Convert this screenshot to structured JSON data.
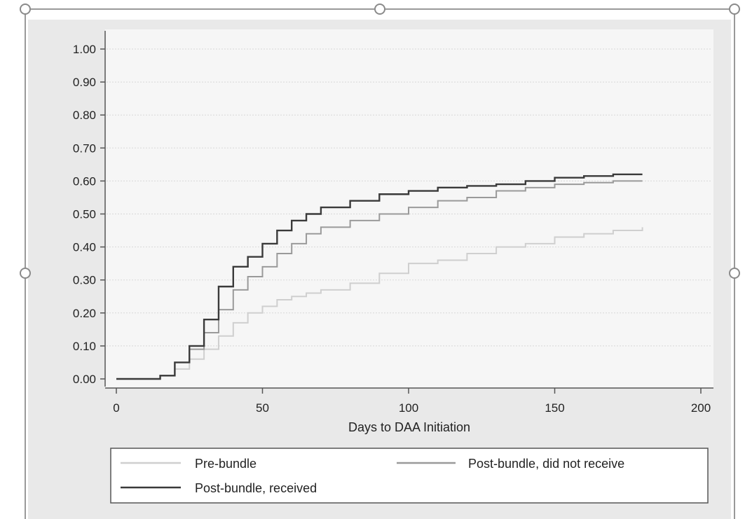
{
  "chart_data": {
    "type": "line",
    "title": "",
    "xlabel": "Days to DAA Initiation",
    "ylabel": "",
    "xlim": [
      0,
      200
    ],
    "ylim": [
      0.0,
      1.0
    ],
    "x_ticks": [
      0,
      50,
      100,
      150,
      200
    ],
    "x_tick_labels": [
      "0",
      "50",
      "100",
      "150",
      "200"
    ],
    "y_ticks": [
      0.0,
      0.1,
      0.2,
      0.3,
      0.4,
      0.5,
      0.6,
      0.7,
      0.8,
      0.9,
      1.0
    ],
    "y_tick_labels": [
      "0.00",
      "0.10",
      "0.20",
      "0.30",
      "0.40",
      "0.50",
      "0.60",
      "0.70",
      "0.80",
      "0.90",
      "1.00"
    ],
    "grid": true,
    "step": true,
    "legend_position": "bottom",
    "series": [
      {
        "name": "Pre-bundle",
        "color": "#cfcfcf",
        "x": [
          0,
          10,
          15,
          20,
          25,
          30,
          35,
          40,
          45,
          50,
          55,
          60,
          65,
          70,
          80,
          90,
          100,
          110,
          120,
          130,
          140,
          150,
          160,
          170,
          180
        ],
        "y": [
          0.0,
          0.0,
          0.01,
          0.03,
          0.06,
          0.09,
          0.13,
          0.17,
          0.2,
          0.22,
          0.24,
          0.25,
          0.26,
          0.27,
          0.29,
          0.32,
          0.35,
          0.36,
          0.38,
          0.4,
          0.41,
          0.43,
          0.44,
          0.45,
          0.46
        ]
      },
      {
        "name": "Post-bundle, did not receive",
        "color": "#9a9a9a",
        "x": [
          0,
          10,
          15,
          20,
          25,
          30,
          35,
          40,
          45,
          50,
          55,
          60,
          65,
          70,
          80,
          90,
          100,
          110,
          120,
          130,
          140,
          150,
          160,
          170,
          180
        ],
        "y": [
          0.0,
          0.0,
          0.01,
          0.05,
          0.09,
          0.14,
          0.21,
          0.27,
          0.31,
          0.34,
          0.38,
          0.41,
          0.44,
          0.46,
          0.48,
          0.5,
          0.52,
          0.54,
          0.55,
          0.57,
          0.58,
          0.59,
          0.595,
          0.6,
          0.6
        ]
      },
      {
        "name": "Post-bundle, received",
        "color": "#3a3a3a",
        "x": [
          0,
          10,
          15,
          20,
          25,
          30,
          35,
          40,
          45,
          50,
          55,
          60,
          65,
          70,
          80,
          90,
          100,
          110,
          120,
          130,
          140,
          150,
          160,
          170,
          180
        ],
        "y": [
          0.0,
          0.0,
          0.01,
          0.05,
          0.1,
          0.18,
          0.28,
          0.34,
          0.37,
          0.41,
          0.45,
          0.48,
          0.5,
          0.52,
          0.54,
          0.56,
          0.57,
          0.58,
          0.585,
          0.59,
          0.6,
          0.61,
          0.615,
          0.62,
          0.62
        ]
      }
    ]
  }
}
